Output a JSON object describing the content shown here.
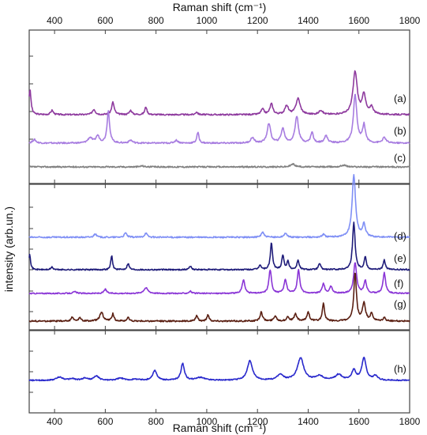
{
  "chart_data": {
    "type": "line",
    "x_axis_title": "Raman shift (cm⁻¹)",
    "y_axis_title": "intensity (arb.un.)",
    "x_ticks": [
      400,
      600,
      800,
      1000,
      1200,
      1400,
      1600,
      1800
    ],
    "x_tick_labels": [
      "400",
      "600",
      "800",
      "1000",
      "1200",
      "1400",
      "1600",
      "1800"
    ],
    "xlim": [
      300,
      1800
    ],
    "x_axis_position": "top and bottom",
    "grid": false,
    "panels": [
      {
        "series_ids": [
          "a",
          "b",
          "c"
        ],
        "ylim": [
          -0.3,
          3.0
        ]
      },
      {
        "series_ids": [
          "d",
          "e",
          "f",
          "g"
        ],
        "ylim": [
          -0.3,
          3.4
        ]
      },
      {
        "series_ids": [
          "h"
        ],
        "ylim": [
          -0.2,
          1.4
        ]
      }
    ],
    "series": [
      {
        "label": "(a)",
        "color": "#8e3a9e",
        "baseline": 1.2,
        "peaks": [
          [
            303,
            0.7,
            5
          ],
          [
            390,
            0.12,
            6
          ],
          [
            555,
            0.15,
            7
          ],
          [
            630,
            0.35,
            6
          ],
          [
            700,
            0.12,
            6
          ],
          [
            760,
            0.22,
            5
          ],
          [
            960,
            0.08,
            5
          ],
          [
            1220,
            0.15,
            7
          ],
          [
            1255,
            0.3,
            7
          ],
          [
            1315,
            0.25,
            8
          ],
          [
            1360,
            0.45,
            10
          ],
          [
            1450,
            0.12,
            8
          ],
          [
            1585,
            1.2,
            10
          ],
          [
            1620,
            0.55,
            8
          ],
          [
            1650,
            0.2,
            8
          ]
        ]
      },
      {
        "label": "(b)",
        "color": "#a77ce0",
        "baseline": 0.55,
        "peaks": [
          [
            320,
            0.1,
            8
          ],
          [
            540,
            0.15,
            10
          ],
          [
            570,
            0.2,
            8
          ],
          [
            612,
            0.9,
            6
          ],
          [
            700,
            0.08,
            8
          ],
          [
            880,
            0.08,
            8
          ],
          [
            965,
            0.3,
            5
          ],
          [
            1180,
            0.15,
            8
          ],
          [
            1245,
            0.55,
            8
          ],
          [
            1300,
            0.4,
            8
          ],
          [
            1355,
            0.75,
            8
          ],
          [
            1415,
            0.3,
            6
          ],
          [
            1470,
            0.2,
            8
          ],
          [
            1585,
            1.35,
            8
          ],
          [
            1620,
            0.5,
            7
          ],
          [
            1700,
            0.15,
            8
          ]
        ]
      },
      {
        "label": "(c)",
        "color": "#808080",
        "baseline": 0.0,
        "peaks": [
          [
            745,
            0.03,
            8
          ],
          [
            1340,
            0.08,
            10
          ],
          [
            1540,
            0.05,
            12
          ]
        ]
      },
      {
        "label": "(d)",
        "color": "#7f8ff5",
        "baseline": 1.3,
        "peaks": [
          [
            560,
            0.1,
            6
          ],
          [
            680,
            0.12,
            6
          ],
          [
            760,
            0.12,
            6
          ],
          [
            1220,
            0.15,
            6
          ],
          [
            1310,
            0.12,
            6
          ],
          [
            1460,
            0.08,
            6
          ],
          [
            1580,
            1.75,
            8
          ],
          [
            1620,
            0.35,
            7
          ]
        ]
      },
      {
        "label": "(e)",
        "color": "#1f1c7a",
        "baseline": 0.8,
        "peaks": [
          [
            302,
            0.5,
            4
          ],
          [
            390,
            0.08,
            5
          ],
          [
            625,
            0.45,
            4
          ],
          [
            690,
            0.2,
            5
          ],
          [
            935,
            0.12,
            5
          ],
          [
            1210,
            0.15,
            5
          ],
          [
            1255,
            0.85,
            5
          ],
          [
            1300,
            0.45,
            5
          ],
          [
            1320,
            0.25,
            5
          ],
          [
            1360,
            0.3,
            5
          ],
          [
            1445,
            0.2,
            5
          ],
          [
            1580,
            1.5,
            6
          ],
          [
            1625,
            0.4,
            5
          ],
          [
            1700,
            0.3,
            5
          ]
        ]
      },
      {
        "label": "(f)",
        "color": "#8a35d6",
        "baseline": 0.4,
        "peaks": [
          [
            480,
            0.06,
            8
          ],
          [
            600,
            0.15,
            6
          ],
          [
            760,
            0.2,
            10
          ],
          [
            935,
            0.08,
            6
          ],
          [
            1145,
            0.5,
            6
          ],
          [
            1250,
            0.85,
            6
          ],
          [
            1310,
            0.5,
            6
          ],
          [
            1362,
            0.85,
            6
          ],
          [
            1460,
            0.35,
            6
          ],
          [
            1490,
            0.25,
            6
          ],
          [
            1585,
            1.1,
            7
          ],
          [
            1625,
            0.45,
            6
          ],
          [
            1700,
            0.75,
            6
          ]
        ]
      },
      {
        "label": "(g)",
        "color": "#5a1f12",
        "baseline": 0.0,
        "peaks": [
          [
            470,
            0.12,
            5
          ],
          [
            500,
            0.1,
            5
          ],
          [
            585,
            0.25,
            8
          ],
          [
            630,
            0.2,
            5
          ],
          [
            690,
            0.1,
            5
          ],
          [
            960,
            0.15,
            5
          ],
          [
            1005,
            0.18,
            5
          ],
          [
            1215,
            0.25,
            6
          ],
          [
            1270,
            0.15,
            6
          ],
          [
            1320,
            0.12,
            6
          ],
          [
            1350,
            0.2,
            6
          ],
          [
            1400,
            0.25,
            6
          ],
          [
            1460,
            0.5,
            5
          ],
          [
            1585,
            1.35,
            6
          ],
          [
            1620,
            0.5,
            7
          ],
          [
            1650,
            0.2,
            6
          ],
          [
            1700,
            0.1,
            5
          ]
        ]
      },
      {
        "label": "(h)",
        "color": "#2828cc",
        "baseline": 0.0,
        "peaks": [
          [
            420,
            0.12,
            15
          ],
          [
            470,
            0.06,
            12
          ],
          [
            520,
            0.08,
            12
          ],
          [
            565,
            0.15,
            12
          ],
          [
            660,
            0.08,
            15
          ],
          [
            720,
            0.04,
            15
          ],
          [
            795,
            0.35,
            10
          ],
          [
            905,
            0.6,
            8
          ],
          [
            975,
            0.1,
            20
          ],
          [
            1170,
            0.7,
            12
          ],
          [
            1290,
            0.2,
            14
          ],
          [
            1370,
            0.8,
            15
          ],
          [
            1445,
            0.15,
            16
          ],
          [
            1520,
            0.2,
            16
          ],
          [
            1580,
            0.35,
            10
          ],
          [
            1620,
            0.8,
            10
          ],
          [
            1665,
            0.15,
            10
          ]
        ]
      }
    ]
  }
}
